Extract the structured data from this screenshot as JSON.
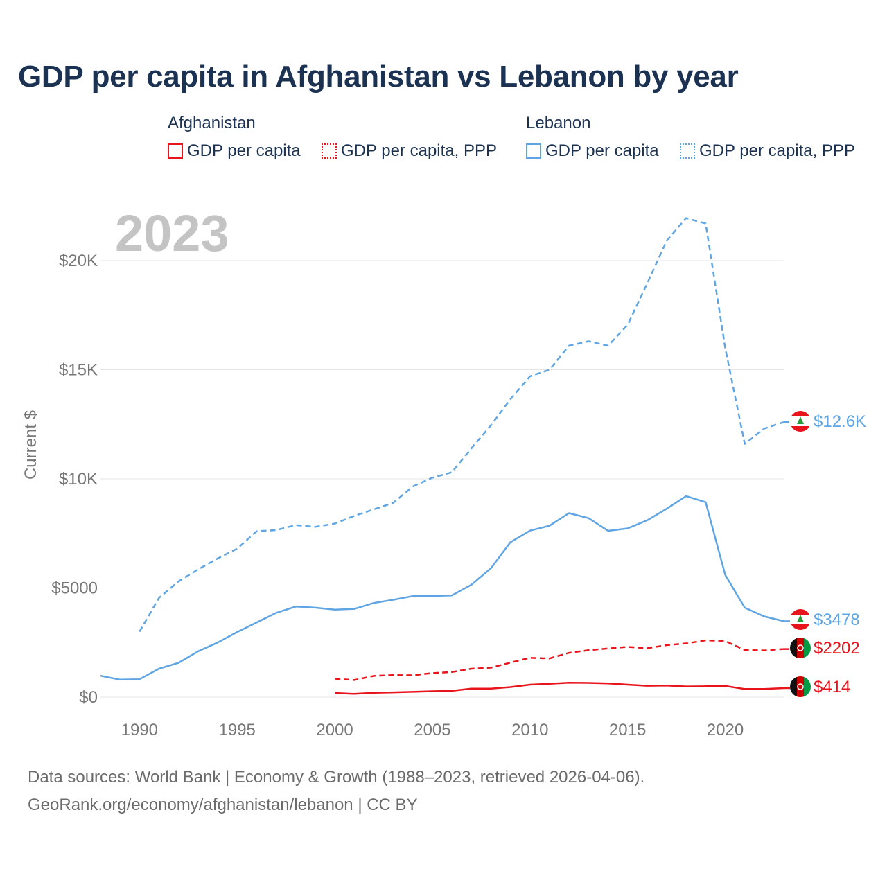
{
  "title": "GDP per capita in Afghanistan vs Lebanon by year",
  "legend": {
    "groups": [
      {
        "country": "Afghanistan",
        "color": "#e8141b",
        "items": [
          {
            "label": "GDP per capita",
            "style": "solid"
          },
          {
            "label": "GDP per capita, PPP",
            "style": "dotted"
          }
        ]
      },
      {
        "country": "Lebanon",
        "color": "#5fa5e3",
        "items": [
          {
            "label": "GDP per capita",
            "style": "solid"
          },
          {
            "label": "GDP per capita, PPP",
            "style": "dotted"
          }
        ]
      }
    ]
  },
  "year_watermark": "2023",
  "footer": {
    "line1": "Data sources: World Bank | Economy & Growth (1988–2023, retrieved 2026-04-06).",
    "line2": "GeoRank.org/economy/afghanistan/lebanon | CC BY"
  },
  "chart_data": {
    "type": "line",
    "title": "GDP per capita in Afghanistan vs Lebanon by year",
    "xlabel": "",
    "ylabel": "Current $",
    "xlim": [
      1988,
      2023
    ],
    "ylim": [
      0,
      22000
    ],
    "x_ticks": [
      1990,
      1995,
      2000,
      2005,
      2010,
      2015,
      2020
    ],
    "y_ticks": [
      0,
      5000,
      10000,
      15000,
      20000
    ],
    "y_tick_labels": [
      "$0",
      "$5000",
      "$10K",
      "$15K",
      "$20K"
    ],
    "grid": true,
    "series": [
      {
        "name": "Lebanon GDP per capita, PPP",
        "country": "Lebanon",
        "color": "#5fa5e3",
        "dash": "dashed",
        "end_label": "$12.6K",
        "points": [
          [
            1990,
            3000
          ],
          [
            1991,
            4550
          ],
          [
            1992,
            5300
          ],
          [
            1993,
            5850
          ],
          [
            1994,
            6350
          ],
          [
            1995,
            6800
          ],
          [
            1996,
            7600
          ],
          [
            1997,
            7650
          ],
          [
            1998,
            7880
          ],
          [
            1999,
            7800
          ],
          [
            2000,
            7950
          ],
          [
            2001,
            8300
          ],
          [
            2002,
            8600
          ],
          [
            2003,
            8900
          ],
          [
            2004,
            9650
          ],
          [
            2005,
            10050
          ],
          [
            2006,
            10300
          ],
          [
            2007,
            11400
          ],
          [
            2008,
            12450
          ],
          [
            2009,
            13650
          ],
          [
            2010,
            14700
          ],
          [
            2011,
            15000
          ],
          [
            2012,
            16100
          ],
          [
            2013,
            16300
          ],
          [
            2014,
            16100
          ],
          [
            2015,
            17050
          ],
          [
            2016,
            18950
          ],
          [
            2017,
            20900
          ],
          [
            2018,
            21950
          ],
          [
            2019,
            21700
          ],
          [
            2020,
            16000
          ],
          [
            2021,
            11600
          ],
          [
            2022,
            12300
          ],
          [
            2023,
            12600
          ]
        ]
      },
      {
        "name": "Lebanon GDP per capita",
        "country": "Lebanon",
        "color": "#5fa5e3",
        "dash": "solid",
        "end_label": "$3478",
        "points": [
          [
            1988,
            980
          ],
          [
            1989,
            800
          ],
          [
            1990,
            820
          ],
          [
            1991,
            1300
          ],
          [
            1992,
            1570
          ],
          [
            1993,
            2100
          ],
          [
            1994,
            2500
          ],
          [
            1995,
            2980
          ],
          [
            1996,
            3420
          ],
          [
            1997,
            3860
          ],
          [
            1998,
            4150
          ],
          [
            1999,
            4100
          ],
          [
            2000,
            4010
          ],
          [
            2001,
            4040
          ],
          [
            2002,
            4310
          ],
          [
            2003,
            4460
          ],
          [
            2004,
            4630
          ],
          [
            2005,
            4630
          ],
          [
            2006,
            4660
          ],
          [
            2007,
            5150
          ],
          [
            2008,
            5900
          ],
          [
            2009,
            7100
          ],
          [
            2010,
            7630
          ],
          [
            2011,
            7850
          ],
          [
            2012,
            8430
          ],
          [
            2013,
            8200
          ],
          [
            2014,
            7620
          ],
          [
            2015,
            7730
          ],
          [
            2016,
            8100
          ],
          [
            2017,
            8630
          ],
          [
            2018,
            9210
          ],
          [
            2019,
            8930
          ],
          [
            2020,
            5600
          ],
          [
            2021,
            4100
          ],
          [
            2022,
            3700
          ],
          [
            2023,
            3478
          ]
        ]
      },
      {
        "name": "Afghanistan GDP per capita, PPP",
        "country": "Afghanistan",
        "color": "#e8141b",
        "dash": "dashed",
        "end_label": "$2202",
        "points": [
          [
            2000,
            840
          ],
          [
            2001,
            780
          ],
          [
            2002,
            970
          ],
          [
            2003,
            1010
          ],
          [
            2004,
            1000
          ],
          [
            2005,
            1100
          ],
          [
            2006,
            1150
          ],
          [
            2007,
            1300
          ],
          [
            2008,
            1350
          ],
          [
            2009,
            1580
          ],
          [
            2010,
            1800
          ],
          [
            2011,
            1770
          ],
          [
            2012,
            2030
          ],
          [
            2013,
            2150
          ],
          [
            2014,
            2230
          ],
          [
            2015,
            2300
          ],
          [
            2016,
            2240
          ],
          [
            2017,
            2380
          ],
          [
            2018,
            2460
          ],
          [
            2019,
            2600
          ],
          [
            2020,
            2570
          ],
          [
            2021,
            2160
          ],
          [
            2022,
            2140
          ],
          [
            2023,
            2202
          ]
        ]
      },
      {
        "name": "Afghanistan GDP per capita",
        "country": "Afghanistan",
        "color": "#e8141b",
        "dash": "solid",
        "end_label": "$414",
        "points": [
          [
            2000,
            190
          ],
          [
            2001,
            150
          ],
          [
            2002,
            200
          ],
          [
            2003,
            220
          ],
          [
            2004,
            240
          ],
          [
            2005,
            270
          ],
          [
            2006,
            290
          ],
          [
            2007,
            390
          ],
          [
            2008,
            390
          ],
          [
            2009,
            460
          ],
          [
            2010,
            570
          ],
          [
            2011,
            610
          ],
          [
            2012,
            660
          ],
          [
            2013,
            650
          ],
          [
            2014,
            630
          ],
          [
            2015,
            570
          ],
          [
            2016,
            520
          ],
          [
            2017,
            530
          ],
          [
            2018,
            490
          ],
          [
            2019,
            500
          ],
          [
            2020,
            510
          ],
          [
            2021,
            370
          ],
          [
            2022,
            370
          ],
          [
            2023,
            414
          ]
        ]
      }
    ]
  }
}
